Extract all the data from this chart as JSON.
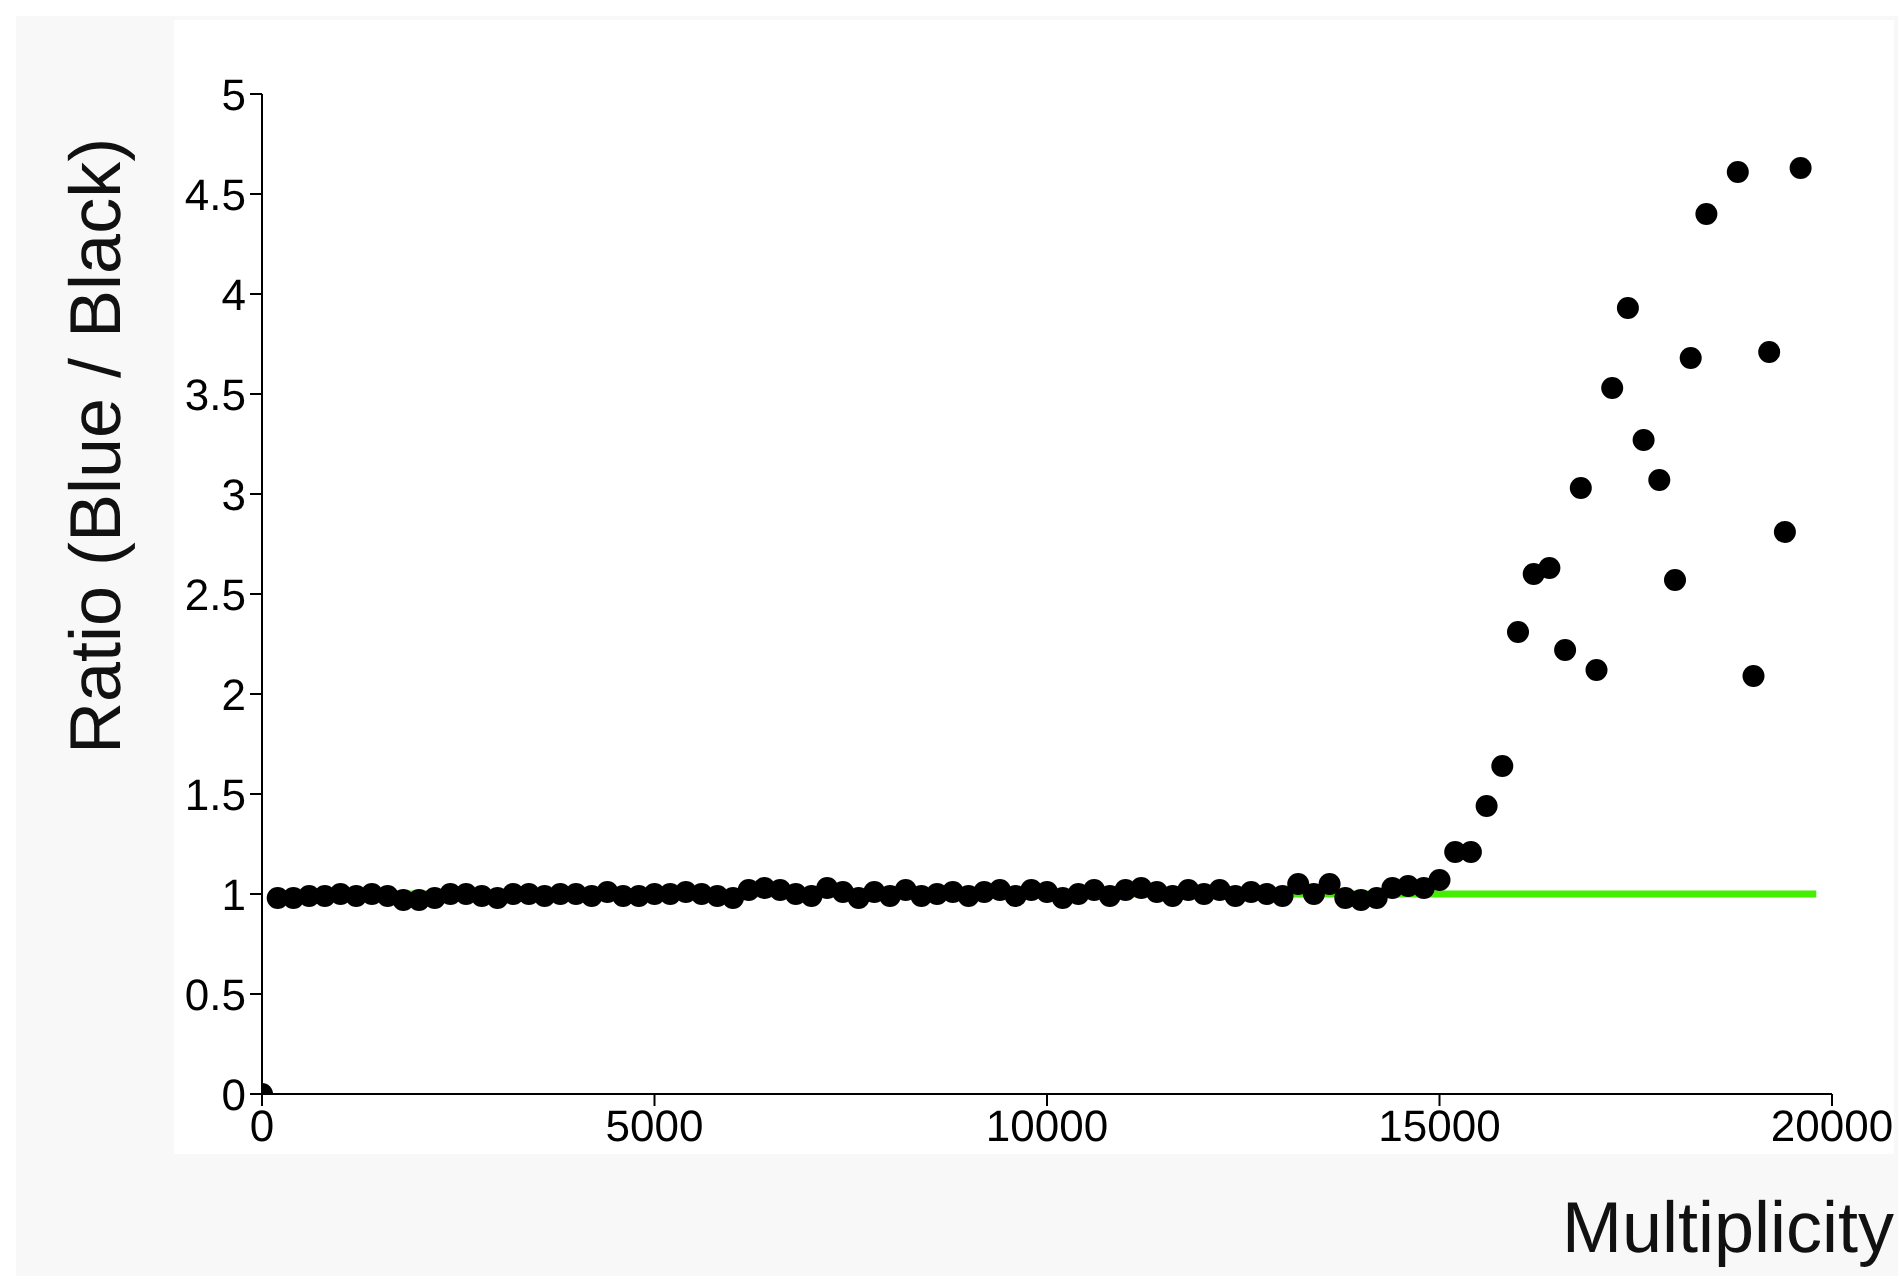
{
  "chart_data": {
    "type": "scatter",
    "xlabel": "Multiplicity",
    "ylabel": "Ratio (Blue / Black)",
    "xlim": [
      0,
      20000
    ],
    "ylim": [
      0,
      5
    ],
    "xticks": [
      0,
      5000,
      10000,
      15000,
      20000
    ],
    "yticks": [
      0,
      0.5,
      1,
      1.5,
      2,
      2.5,
      3,
      3.5,
      4,
      4.5,
      5
    ],
    "grid": false,
    "legend": false,
    "series": [
      {
        "marker": "circle",
        "color": "#000000",
        "x": [
          0,
          200,
          400,
          600,
          800,
          1000,
          1200,
          1400,
          1600,
          1800,
          2000,
          2200,
          2400,
          2600,
          2800,
          3000,
          3200,
          3400,
          3600,
          3800,
          4000,
          4200,
          4400,
          4600,
          4800,
          5000,
          5200,
          5400,
          5600,
          5800,
          6000,
          6200,
          6400,
          6600,
          6800,
          7000,
          7200,
          7400,
          7600,
          7800,
          8000,
          8200,
          8400,
          8600,
          8800,
          9000,
          9200,
          9400,
          9600,
          9800,
          10000,
          10200,
          10400,
          10600,
          10800,
          11000,
          11200,
          11400,
          11600,
          11800,
          12000,
          12200,
          12400,
          12600,
          12800,
          13000,
          13200,
          13400,
          13600,
          13800,
          14000,
          14200,
          14400,
          14600,
          14800,
          15000,
          15200,
          15400,
          15600,
          15800,
          16000,
          16200,
          16400,
          16600,
          16800,
          17000,
          17200,
          17400,
          17600,
          17800,
          18000,
          18200,
          18400,
          18800,
          19000,
          19200,
          19400,
          19600
        ],
        "values": [
          0,
          0.98,
          0.98,
          0.99,
          0.99,
          1.0,
          0.99,
          1.0,
          0.99,
          0.97,
          0.97,
          0.98,
          1.0,
          1.0,
          0.99,
          0.98,
          1.0,
          1.0,
          0.99,
          1.0,
          1.0,
          0.99,
          1.01,
          0.99,
          0.99,
          1.0,
          1.0,
          1.01,
          1.0,
          0.99,
          0.98,
          1.02,
          1.03,
          1.02,
          1.0,
          0.99,
          1.03,
          1.01,
          0.98,
          1.01,
          0.99,
          1.02,
          0.99,
          1.0,
          1.01,
          0.99,
          1.01,
          1.02,
          0.99,
          1.02,
          1.01,
          0.98,
          1.0,
          1.02,
          0.99,
          1.02,
          1.03,
          1.01,
          0.99,
          1.02,
          1.0,
          1.02,
          0.99,
          1.01,
          1.0,
          0.99,
          1.05,
          1.0,
          1.05,
          0.98,
          0.97,
          0.98,
          1.03,
          1.04,
          1.03,
          1.07,
          1.21,
          1.21,
          1.44,
          1.64,
          2.31,
          2.6,
          2.63,
          2.22,
          3.03,
          2.12,
          3.53,
          3.93,
          3.27,
          3.07,
          2.57,
          3.68,
          4.4,
          4.61,
          2.09,
          3.71,
          2.81,
          4.63
        ]
      },
      {
        "type": "line",
        "color": "#44ee00",
        "x": [
          100,
          19800
        ],
        "values": [
          1,
          1
        ]
      }
    ]
  }
}
